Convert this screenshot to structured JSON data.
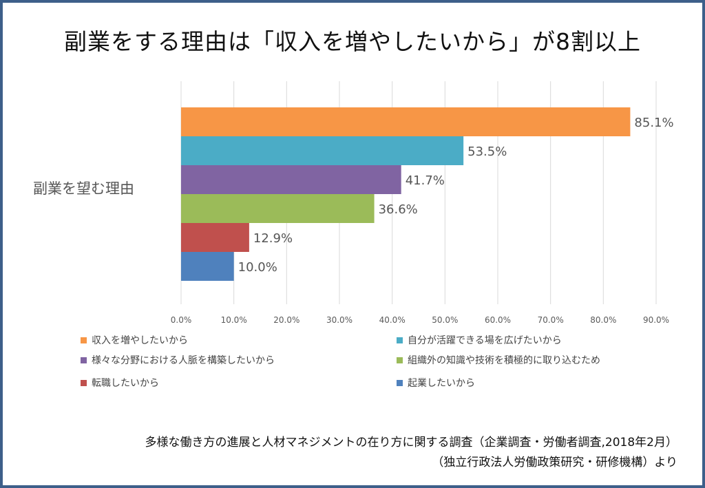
{
  "title": "副業をする理由は「収入を増やしたいから」が8割以上",
  "chart_data": {
    "type": "bar",
    "orientation": "horizontal",
    "category": "副業を望む理由",
    "series": [
      {
        "name": "収入を増やしたいから",
        "value": 85.1,
        "label": "85.1%",
        "color": "#f79646"
      },
      {
        "name": "自分が活躍できる場を広げたいから",
        "value": 53.5,
        "label": "53.5%",
        "color": "#4bacc6"
      },
      {
        "name": "様々な分野における人脈を構築したいから",
        "value": 41.7,
        "label": "41.7%",
        "color": "#8064a2"
      },
      {
        "name": "組織外の知識や技術を積極的に取り込むため",
        "value": 36.6,
        "label": "36.6%",
        "color": "#9bbb59"
      },
      {
        "name": "転職したいから",
        "value": 12.9,
        "label": "12.9%",
        "color": "#c0504d"
      },
      {
        "name": "起業したいから",
        "value": 10.0,
        "label": "10.0%",
        "color": "#4f81bd"
      }
    ],
    "xlim": [
      0,
      90
    ],
    "xticks": [
      "0.0%",
      "10.0%",
      "20.0%",
      "30.0%",
      "40.0%",
      "50.0%",
      "60.0%",
      "70.0%",
      "80.0%",
      "90.0%"
    ],
    "grid": true,
    "legend_position": "bottom"
  },
  "source": {
    "line1": "多様な働き方の進展と人材マネジメントの在り方に関する調査（企業調査・労働者調査,2018年2月）",
    "line2": "（独立行政法人労働政策研究・研修機構）より"
  }
}
